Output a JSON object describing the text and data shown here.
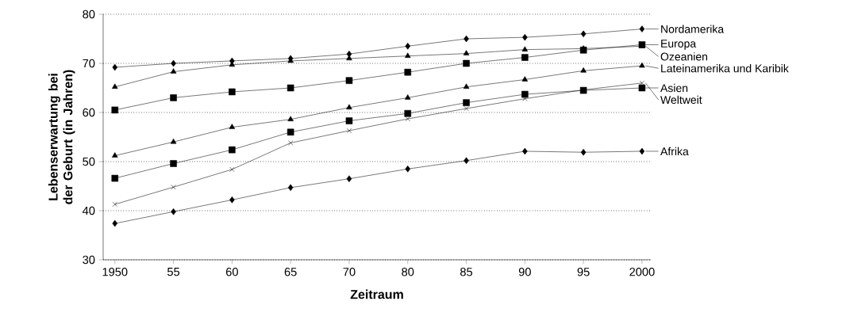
{
  "chart_data": {
    "type": "line",
    "xlabel": "Zeitraum",
    "ylabel": "Lebenserwartung bei der Geburt (in Jahren)",
    "categories": [
      "1950",
      "55",
      "60",
      "65",
      "70",
      "80",
      "85",
      "90",
      "95",
      "2000"
    ],
    "ylim": [
      30,
      80
    ],
    "yticks": [
      30,
      40,
      50,
      60,
      70,
      80
    ],
    "grid": "y",
    "legend": "right",
    "line_style": "solid",
    "series": [
      {
        "name": "Nordamerika",
        "color": "#000000",
        "marker": "diamond",
        "values": [
          69.2,
          70,
          70.5,
          71,
          71.9,
          73.5,
          75,
          75.3,
          76,
          77
        ]
      },
      {
        "name": "Europa",
        "color": "#000000",
        "marker": "square",
        "values": [
          60.5,
          63,
          64.2,
          65,
          66.5,
          68.2,
          70,
          71.2,
          72.7,
          73.8
        ]
      },
      {
        "name": "Ozeanien",
        "color": "#000000",
        "marker": "triangle",
        "values": [
          65.2,
          68.3,
          69.7,
          70.5,
          71,
          71.5,
          72,
          72.8,
          73,
          73.5
        ]
      },
      {
        "name": "Lateinamerika und Karibik",
        "color": "#000000",
        "marker": "triangle",
        "values": [
          51.2,
          54,
          57,
          58.6,
          61,
          63,
          65.2,
          66.7,
          68.5,
          69.5
        ]
      },
      {
        "name": "Asien",
        "color": "#000000",
        "marker": "square",
        "values": [
          46.6,
          49.6,
          52.4,
          56,
          58.3,
          59.8,
          62,
          63.7,
          64.5,
          65
        ]
      },
      {
        "name": "Weltweit",
        "color": "#000000",
        "marker": "cross",
        "values": [
          41.3,
          44.8,
          48.4,
          53.8,
          56.3,
          58.7,
          60.8,
          62.8,
          64.6,
          66
        ]
      },
      {
        "name": "Afrika",
        "color": "#000000",
        "marker": "diamond",
        "values": [
          37.4,
          39.8,
          42.2,
          44.7,
          46.5,
          48.5,
          50.2,
          52.1,
          51.9,
          52.1
        ]
      }
    ]
  }
}
